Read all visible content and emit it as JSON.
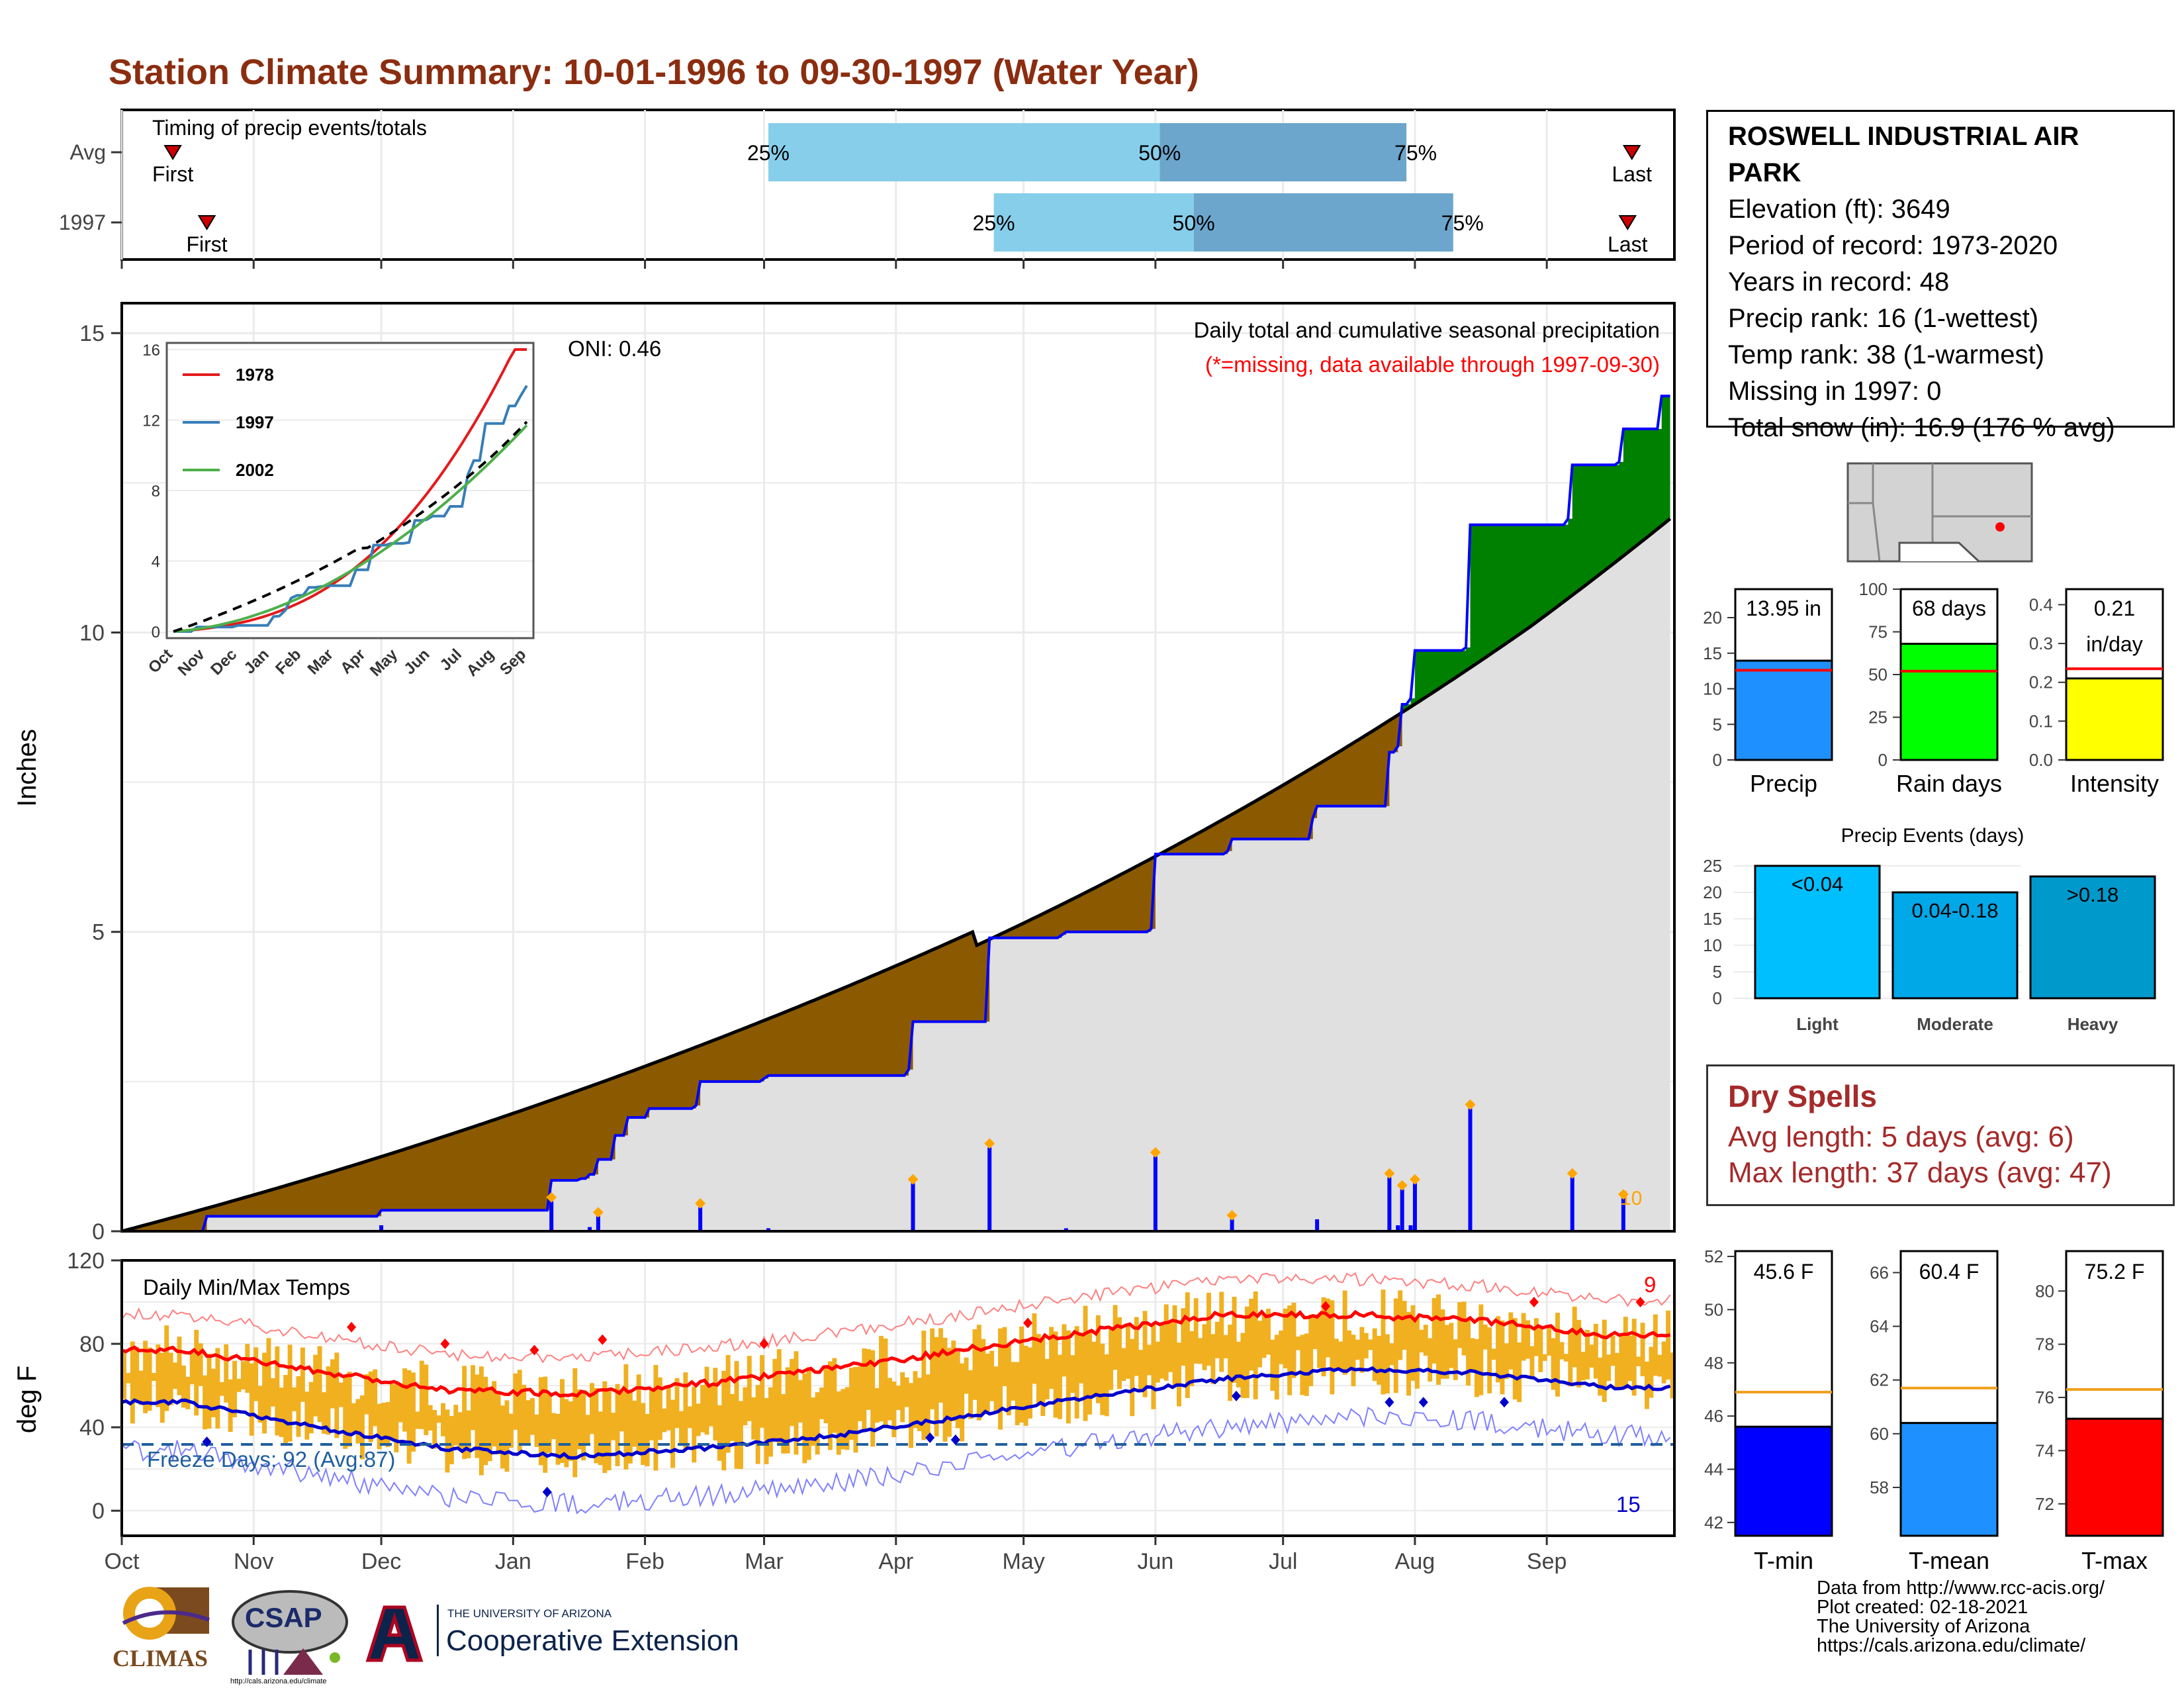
{
  "title": "Station Climate Summary: 10-01-1996 to 09-30-1997 (Water Year)",
  "timing": {
    "title": "Timing of precip events/totals",
    "rows": [
      {
        "label": "Avg",
        "first_label": "First",
        "last_label": "Last",
        "p25_label": "25%",
        "p50_label": "50%",
        "p75_label": "75%",
        "first_day": 12,
        "p25_day": 152,
        "p50_day": 244,
        "p75_day": 302,
        "last_day": 355
      },
      {
        "label": "1997",
        "first_label": "First",
        "last_label": "Last",
        "p25_label": "25%",
        "p50_label": "50%",
        "p75_label": "75%",
        "first_day": 20,
        "p25_day": 205,
        "p50_day": 252,
        "p75_day": 313,
        "last_day": 354
      }
    ]
  },
  "station": {
    "name_line1": "ROSWELL INDUSTRIAL AIR",
    "name_line2": "PARK",
    "elevation": "Elevation (ft): 3649",
    "period": "Period of record: 1973-2020",
    "years": "Years in record: 48",
    "precip_rank": "Precip rank: 16 (1-wettest)",
    "temp_rank": "Temp rank: 38 (1-warmest)",
    "missing": "Missing in 1997: 0",
    "snow": "Total snow (in): 16.9 (176 % avg)"
  },
  "precip_chart": {
    "ylabel": "Inches",
    "oni": "ONI: 0.46",
    "subtitle": "Daily total and cumulative seasonal precipitation",
    "missing_note": "(*=missing, data available through 1997-09-30)",
    "count_label": "10",
    "yticks": [
      "0",
      "5",
      "10",
      "15"
    ]
  },
  "inset": {
    "yticks": [
      "0",
      "4",
      "8",
      "12",
      "16"
    ],
    "months": [
      "Oct",
      "Nov",
      "Dec",
      "Jan",
      "Feb",
      "Mar",
      "Apr",
      "May",
      "Jun",
      "Jul",
      "Aug",
      "Sep"
    ],
    "legend": [
      "1978",
      "1997",
      "2002"
    ]
  },
  "temp_chart": {
    "title": "Daily Min/Max Temps",
    "ylabel": "deg F",
    "freeze": "Freeze Days: 92 (Avg:87)",
    "max_count": "9",
    "min_count": "15",
    "yticks": [
      "0",
      "40",
      "80",
      "120"
    ]
  },
  "months": [
    "Oct",
    "Nov",
    "Dec",
    "Jan",
    "Feb",
    "Mar",
    "Apr",
    "May",
    "Jun",
    "Jul",
    "Aug",
    "Sep"
  ],
  "bars_top": [
    {
      "name": "precip",
      "label": "Precip",
      "value_text": "13.95 in",
      "value": 13.95,
      "avg": 12.6,
      "ymax": 24,
      "yticks": [
        "0",
        "5",
        "10",
        "15",
        "20"
      ],
      "color": "#1e90ff"
    },
    {
      "name": "rain-days",
      "label": "Rain days",
      "value_text": "68 days",
      "value": 68,
      "avg": 52,
      "ymax": 100,
      "yticks": [
        "0",
        "25",
        "50",
        "75",
        "100"
      ],
      "color": "#00ff00"
    },
    {
      "name": "intensity",
      "label": "Intensity",
      "value_text": "0.21",
      "value_text2": "in/day",
      "value": 0.21,
      "avg": 0.235,
      "ymax": 0.44,
      "yticks": [
        "0.0",
        "0.1",
        "0.2",
        "0.3",
        "0.4"
      ],
      "color": "#ffff00"
    }
  ],
  "events": {
    "title": "Precip Events (days)",
    "yticks": [
      "0",
      "5",
      "10",
      "15",
      "20",
      "25"
    ],
    "bars": [
      {
        "name": "light",
        "label": "Light",
        "range": "<0.04",
        "value": 25,
        "color": "#00bfff"
      },
      {
        "name": "moderate",
        "label": "Moderate",
        "range": "0.04-0.18",
        "value": 20,
        "color": "#00a8e8"
      },
      {
        "name": "heavy",
        "label": "Heavy",
        "range": ">0.18",
        "value": 23,
        "color": "#0099cc"
      }
    ]
  },
  "dry_spells": {
    "title": "Dry Spells",
    "avg": "Avg length: 5 days (avg: 6)",
    "max": "Max length: 37 days (avg: 47)"
  },
  "bars_bottom": [
    {
      "name": "tmin",
      "label": "T-min",
      "value_text": "45.6 F",
      "value": 45.6,
      "avg": 46.9,
      "ymin": 41.5,
      "ymax": 52.2,
      "ticks": [
        42,
        44,
        46,
        48,
        50,
        52
      ],
      "color": "#0000ff"
    },
    {
      "name": "tmean",
      "label": "T-mean",
      "value_text": "60.4 F",
      "value": 60.4,
      "avg": 61.7,
      "ymin": 56.2,
      "ymax": 66.8,
      "ticks": [
        58,
        60,
        62,
        64,
        66
      ],
      "color": "#1e90ff"
    },
    {
      "name": "tmax",
      "label": "T-max",
      "value_text": "75.2 F",
      "value": 75.2,
      "avg": 76.3,
      "ymin": 70.8,
      "ymax": 81.5,
      "ticks": [
        72,
        74,
        76,
        78,
        80
      ],
      "color": "#ff0000"
    }
  ],
  "credits": {
    "line1": "Data from http://www.rcc-acis.org/",
    "line2": "Plot created: 02-18-2021",
    "line3": "The University of Arizona",
    "line4": "https://cals.arizona.edu/climate/"
  },
  "logos": {
    "climas": "CLIMAS",
    "csap": "CSAP",
    "csap_url": "http://cals.arizona.edu/climate",
    "ua_small": "THE UNIVERSITY OF ARIZONA",
    "ua_large": "Cooperative Extension"
  },
  "chart_data": [
    {
      "type": "area",
      "title": "Daily total and cumulative seasonal precipitation",
      "ylabel": "Inches",
      "ylim": [
        0,
        15
      ],
      "series": [
        {
          "name": "1997",
          "x_day": [
            0,
            20,
            60,
            61,
            100,
            101,
            108,
            110,
            112,
            116,
            119,
            124,
            135,
            136,
            151,
            152,
            185,
            186,
            203,
            204,
            221,
            222,
            242,
            243,
            260,
            261,
            280,
            281,
            297,
            298,
            300,
            301,
            303,
            304,
            316,
            317,
            340,
            341,
            352,
            353,
            362,
            364
          ],
          "y": [
            0,
            0.25,
            0.25,
            0.35,
            0.35,
            0.85,
            0.88,
            0.95,
            1.2,
            1.6,
            1.9,
            2.05,
            2.1,
            2.5,
            2.55,
            2.6,
            2.7,
            3.5,
            3.5,
            4.9,
            4.95,
            5.0,
            5.05,
            6.3,
            6.35,
            6.55,
            6.9,
            7.1,
            7.1,
            8.0,
            8.1,
            8.8,
            8.9,
            9.7,
            9.75,
            11.8,
            11.9,
            12.8,
            12.85,
            13.4,
            13.95,
            13.95
          ]
        }
      ],
      "avg_cumulative_end": 11.9
    },
    {
      "type": "line",
      "title": "Daily Min/Max Temps",
      "ylabel": "deg F",
      "ylim": [
        -10,
        120
      ],
      "series": [
        {
          "name": "avg max",
          "month_values": [
            77,
            67,
            58,
            56,
            61,
            68,
            77,
            86,
            94,
            94,
            91,
            84
          ]
        },
        {
          "name": "avg min",
          "month_values": [
            52,
            40,
            30,
            26,
            30,
            36,
            45,
            55,
            63,
            68,
            66,
            59
          ]
        }
      ]
    }
  ]
}
